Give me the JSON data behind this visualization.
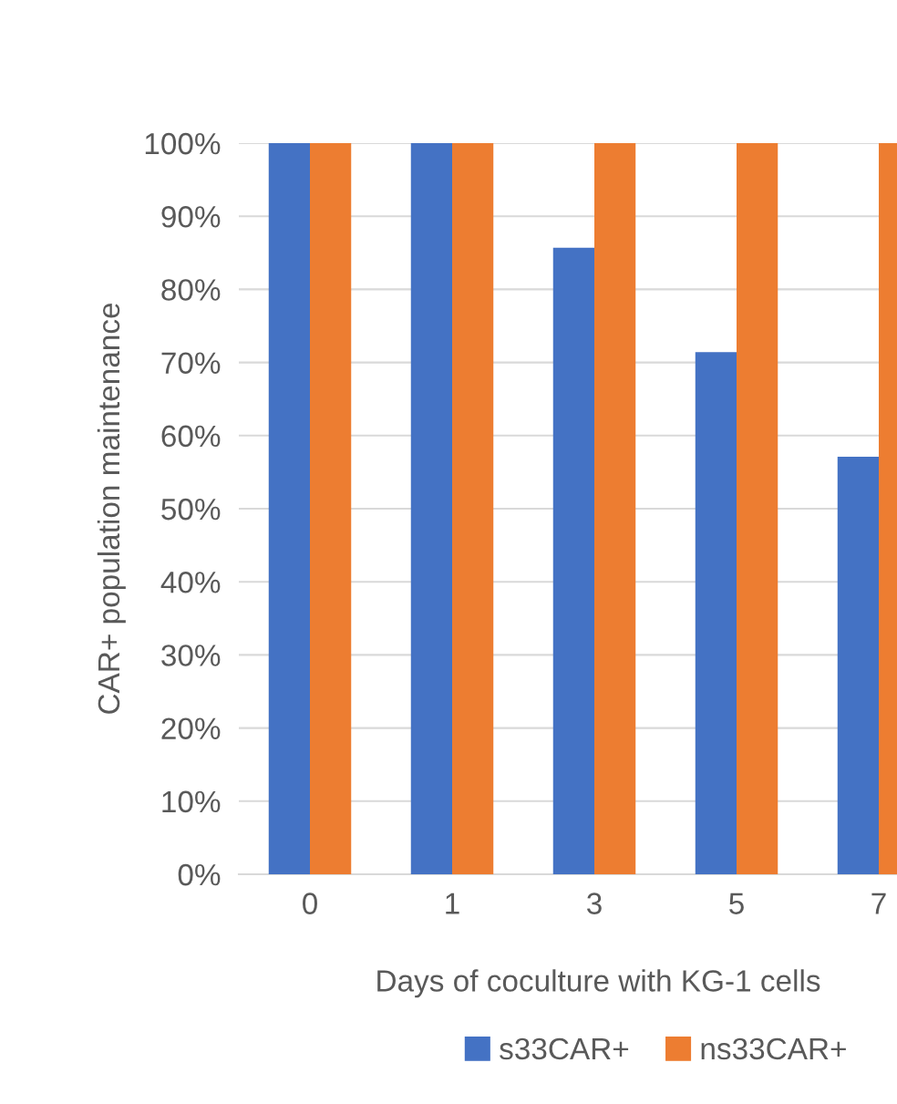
{
  "chart_data": {
    "type": "bar",
    "xlabel": "Days of coculture with KG-1 cells",
    "ylabel": "CAR+ population maintenance",
    "categories": [
      "0",
      "1",
      "3",
      "5",
      "7"
    ],
    "series": [
      {
        "name": "s33CAR+",
        "color": "#4472c4",
        "values": [
          100,
          100,
          85.7,
          71.4,
          57.1
        ]
      },
      {
        "name": "ns33CAR+",
        "color": "#ed7d31",
        "values": [
          100,
          100,
          100,
          100,
          100
        ]
      }
    ],
    "ylim": [
      0,
      100
    ],
    "yticks": [
      {
        "value": 0,
        "label": "0%"
      },
      {
        "value": 10,
        "label": "10%"
      },
      {
        "value": 20,
        "label": "20%"
      },
      {
        "value": 30,
        "label": "30%"
      },
      {
        "value": 40,
        "label": "40%"
      },
      {
        "value": 50,
        "label": "50%"
      },
      {
        "value": 60,
        "label": "60%"
      },
      {
        "value": 70,
        "label": "70%"
      },
      {
        "value": 80,
        "label": "80%"
      },
      {
        "value": 90,
        "label": "90%"
      },
      {
        "value": 100,
        "label": "100%"
      }
    ],
    "grid": "y",
    "legend": "bottom"
  }
}
